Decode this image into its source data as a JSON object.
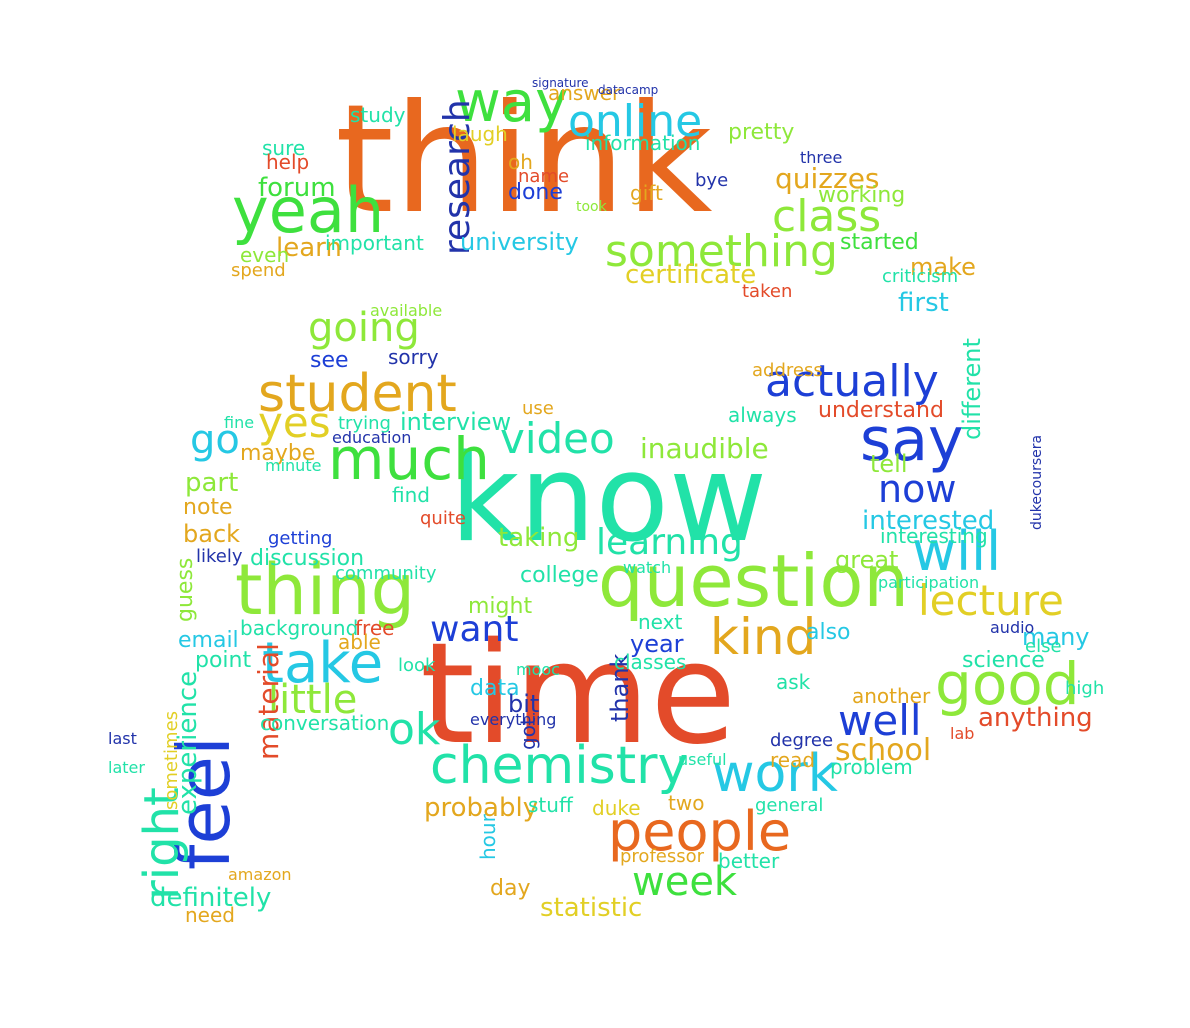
{
  "colors": {
    "orange": "#e8681f",
    "green": "#3ee03e",
    "lime": "#8ee83a",
    "yellow": "#e2cf25",
    "teal": "#21e2a8",
    "cyan": "#25c8e4",
    "blue": "#1d3fd6",
    "red": "#e34b2a",
    "gold": "#e3a71e",
    "navy": "#2233aa"
  },
  "words": {
    "think": "think",
    "know": "know",
    "time": "time",
    "question": "question",
    "thing": "thing",
    "feel": "feel",
    "yeah": "yeah",
    "way": "way",
    "online": "online",
    "class": "class",
    "something": "something",
    "research": "research",
    "people": "people",
    "chemistry": "chemistry",
    "work": "work",
    "good": "good",
    "will": "will",
    "lecture": "lecture",
    "say": "say",
    "actually": "actually",
    "student": "student",
    "much": "much",
    "take": "take",
    "right": "right",
    "kind": "kind",
    "well": "well",
    "ok": "ok",
    "video": "video",
    "learning": "learning",
    "go": "go",
    "going": "going",
    "yes": "yes",
    "now": "now",
    "week": "week",
    "little": "little",
    "want": "want",
    "material": "material",
    "experience": "experience",
    "definitely": "definitely",
    "statistic": "statistic",
    "probably": "probably",
    "school": "school",
    "anything": "anything",
    "interested": "interested",
    "inaudible": "inaudible",
    "forum": "forum",
    "learn": "learn",
    "university": "university",
    "certificate": "certificate",
    "quizzes": "quizzes",
    "working": "working",
    "started": "started",
    "make": "make",
    "first": "first",
    "different": "different",
    "understand": "understand",
    "tell": "tell",
    "interview": "interview",
    "taking": "taking",
    "college": "college",
    "part": "part",
    "back": "back",
    "note": "note",
    "maybe": "maybe",
    "great": "great",
    "interesting": "interesting",
    "discussion": "discussion",
    "email": "email",
    "background": "background",
    "point": "point",
    "conversation": "conversation",
    "also": "also",
    "many": "many",
    "science": "science",
    "another": "another",
    "problem": "problem",
    "degree": "degree",
    "general": "general",
    "professor": "professor",
    "better": "better",
    "day": "day",
    "hour": "hour",
    "stuff": "stuff",
    "duke": "duke",
    "two": "two",
    "data": "data",
    "bit": "bit",
    "thank": "thank",
    "got": "got",
    "classes": "classes",
    "next": "next",
    "year": "year",
    "might": "might",
    "free": "free",
    "able": "able",
    "guess": "guess",
    "sometimes": "sometimes",
    "amazon": "amazon",
    "need": "need",
    "getting": "getting",
    "likely": "likely",
    "community": "community",
    "see": "see",
    "sorry": "sorry",
    "education": "education",
    "find": "find",
    "quite": "quite",
    "minute": "minute",
    "important": "important",
    "even": "even",
    "spend": "spend",
    "sure": "sure",
    "help": "help",
    "study": "study",
    "answer": "answer",
    "laugh": "laugh",
    "done": "done",
    "information": "information",
    "pretty": "pretty",
    "gift": "gift",
    "bye": "bye",
    "three": "three",
    "taken": "taken",
    "criticism": "criticism",
    "always": "always",
    "address": "address",
    "ask": "ask",
    "read": "read",
    "audio": "audio",
    "else": "else",
    "high": "high",
    "lab": "lab",
    "useful": "useful",
    "mooc": "mooc",
    "everything": "everything",
    "look": "look",
    "use": "use",
    "trying": "trying",
    "fine": "fine",
    "last": "last",
    "later": "later",
    "available": "available",
    "oh": "oh",
    "name": "name",
    "took": "took",
    "datacamp": "datacamp",
    "signature": "signature",
    "participation": "participation",
    "dukecoursera": "dukecoursera",
    "watch": "watch"
  }
}
